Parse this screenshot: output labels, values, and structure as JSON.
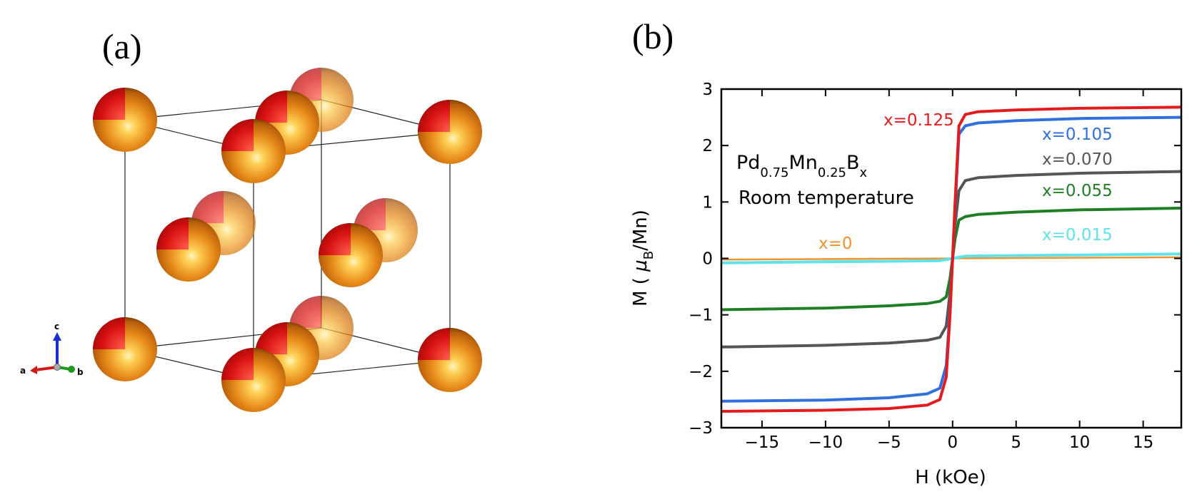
{
  "panel_a": {
    "label": "(a)",
    "axes_triad": {
      "a": "a",
      "b": "b",
      "c": "c"
    }
  },
  "panel_b": {
    "label": "(b)",
    "compound_parts": {
      "pd": "Pd",
      "pd_sub": "0.75",
      "mn": "Mn",
      "mn_sub": "0.25",
      "b": "B",
      "b_sub": "x"
    },
    "condition": "Room temperature",
    "ylabel_parts": {
      "m": "M ( ",
      "mu": "μ",
      "sub": "B",
      "rest": "/Mn)"
    },
    "xlabel": "H (kOe)"
  },
  "colors": {
    "atom_orange": "#e08a1e",
    "atom_red": "#d21010",
    "x0125": "#e41a1c",
    "x0105": "#2f6fe0",
    "x0070": "#555555",
    "x0055": "#1f7f24",
    "x0015": "#5ee3ea",
    "x0": "#f0922e"
  },
  "chart_data": {
    "type": "line",
    "xlabel": "H (kOe)",
    "ylabel": "M (μB/Mn)",
    "xlim": [
      -18.2,
      18
    ],
    "ylim": [
      -3,
      3
    ],
    "xticks": [
      -15,
      -10,
      -5,
      0,
      5,
      10,
      15
    ],
    "yticks": [
      -3,
      -2,
      -1,
      0,
      1,
      2,
      3
    ],
    "grid": false,
    "series": [
      {
        "name": "x=0.125",
        "color": "#e41a1c",
        "x": [
          -18.2,
          -10,
          -5,
          -2,
          -1,
          -0.5,
          -0.2,
          0,
          0.2,
          0.5,
          1,
          2,
          5,
          10,
          18
        ],
        "y": [
          -2.71,
          -2.69,
          -2.66,
          -2.6,
          -2.5,
          -2.1,
          -1.0,
          0,
          1.0,
          2.35,
          2.55,
          2.6,
          2.63,
          2.66,
          2.68
        ]
      },
      {
        "name": "x=0.105",
        "color": "#2f6fe0",
        "x": [
          -18.2,
          -10,
          -5,
          -2,
          -1,
          -0.5,
          -0.2,
          0,
          0.2,
          0.5,
          1,
          2,
          5,
          10,
          18
        ],
        "y": [
          -2.53,
          -2.51,
          -2.47,
          -2.4,
          -2.3,
          -1.9,
          -0.9,
          0,
          0.9,
          2.2,
          2.35,
          2.4,
          2.44,
          2.48,
          2.5
        ]
      },
      {
        "name": "x=0.070",
        "color": "#555555",
        "x": [
          -18.2,
          -10,
          -5,
          -2,
          -1,
          -0.5,
          -0.2,
          0,
          0.2,
          0.5,
          1,
          2,
          5,
          10,
          18
        ],
        "y": [
          -1.57,
          -1.54,
          -1.5,
          -1.45,
          -1.4,
          -1.2,
          -0.6,
          0,
          0.6,
          1.2,
          1.38,
          1.43,
          1.47,
          1.51,
          1.54
        ]
      },
      {
        "name": "x=0.055",
        "color": "#1f7f24",
        "x": [
          -18.2,
          -10,
          -5,
          -2,
          -1,
          -0.5,
          -0.2,
          0,
          0.2,
          0.5,
          1,
          2,
          5,
          10,
          18
        ],
        "y": [
          -0.91,
          -0.88,
          -0.84,
          -0.8,
          -0.76,
          -0.68,
          -0.35,
          0,
          0.35,
          0.68,
          0.74,
          0.78,
          0.82,
          0.86,
          0.89
        ]
      },
      {
        "name": "x=0.015",
        "color": "#5ee3ea",
        "x": [
          -18.2,
          -10,
          -5,
          -1,
          0,
          1,
          5,
          10,
          18
        ],
        "y": [
          -0.08,
          -0.06,
          -0.05,
          -0.04,
          0,
          0.04,
          0.05,
          0.06,
          0.08
        ]
      },
      {
        "name": "x=0",
        "color": "#f0922e",
        "x": [
          -18.2,
          0,
          18
        ],
        "y": [
          -0.02,
          0,
          0.02
        ]
      }
    ]
  }
}
